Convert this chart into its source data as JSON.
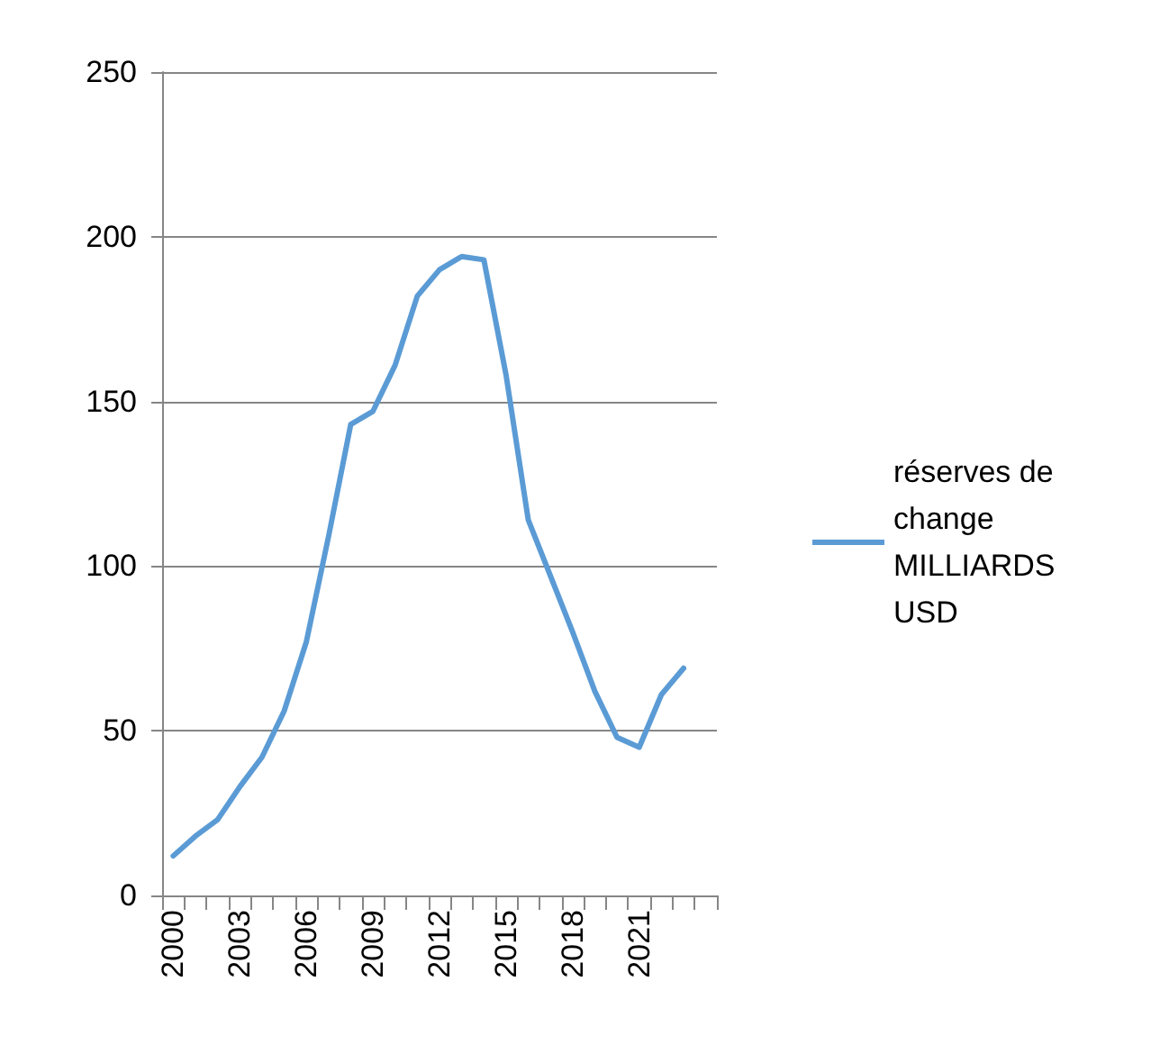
{
  "chart_data": {
    "type": "line",
    "categories": [
      "2000",
      null,
      null,
      "2003",
      null,
      null,
      "2006",
      null,
      null,
      "2009",
      null,
      null,
      "2012",
      null,
      null,
      "2015",
      null,
      null,
      "2018",
      null,
      null,
      "2021",
      null,
      null,
      null
    ],
    "series": [
      {
        "name": "réserves de change MILLIARDS USD",
        "color": "#5b9bd5",
        "values": [
          12,
          18,
          23,
          33,
          42,
          56,
          77,
          109,
          143,
          147,
          161,
          182,
          190,
          194,
          193,
          158,
          114,
          97,
          80,
          62,
          48,
          45,
          61,
          69,
          null
        ]
      }
    ],
    "ylim": [
      0,
      250
    ],
    "yticks": [
      0,
      50,
      100,
      150,
      200,
      250
    ],
    "grid": "y",
    "legend": "right",
    "marker": "none",
    "line_style": "solid"
  }
}
